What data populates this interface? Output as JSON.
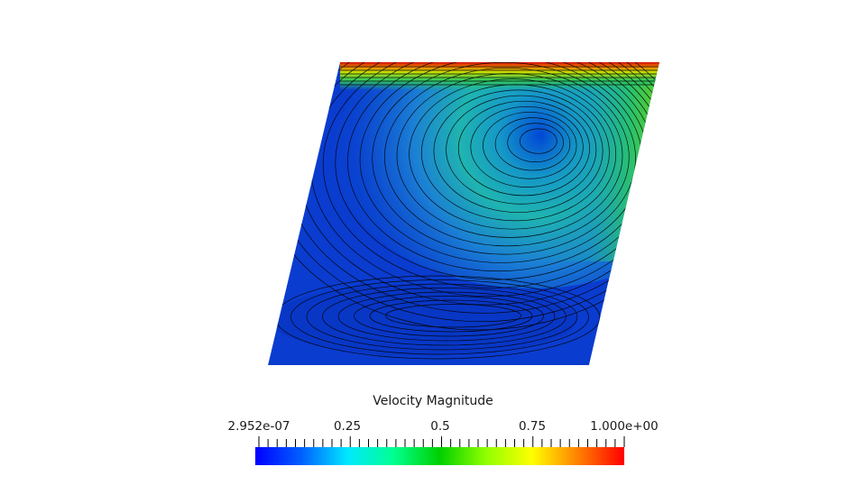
{
  "legend": {
    "title": "Velocity Magnitude",
    "min_label": "2.952e-07",
    "max_label": "1.000e+00",
    "tick_labels": [
      "0.25",
      "0.5",
      "0.75"
    ],
    "range": [
      2.952e-07,
      1.0
    ],
    "colormap": [
      "#0000ff",
      "#00a0ff",
      "#00ffff",
      "#00ff80",
      "#00d000",
      "#a0ff00",
      "#ffff00",
      "#ff8000",
      "#ff0000"
    ]
  },
  "field": {
    "fill_color": "#0a3ccf",
    "lid_color": "#d01000",
    "streamline_color": "#000000"
  }
}
